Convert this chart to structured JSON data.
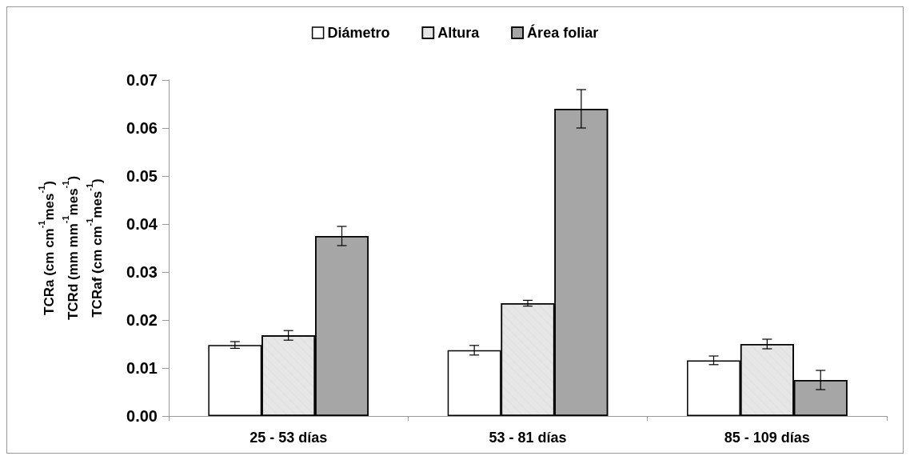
{
  "chart_data": {
    "type": "bar",
    "ylabel": "TCRa (cm cm$^{-1}$mes$^{-1}$)\nTCRd (mm mm$^{-1}$mes$^{-1}$)\nTCRaf (cm cm$^{-1}$mes$^{-1}$)",
    "categories": [
      "25 - 53 días",
      "53 - 81 días",
      "85 - 109 días"
    ],
    "series": [
      {
        "name": "Diámetro",
        "color": "#ffffff",
        "values": [
          0.0148,
          0.0137,
          0.0116
        ],
        "errors": [
          0.0007,
          0.001,
          0.0009
        ]
      },
      {
        "name": "Altura",
        "color": "#e6e6e6",
        "values": [
          0.0168,
          0.0235,
          0.015
        ],
        "errors": [
          0.001,
          0.0006,
          0.001
        ]
      },
      {
        "name": "Área foliar",
        "color": "#a6a6a6",
        "values": [
          0.0375,
          0.064,
          0.0075
        ],
        "errors": [
          0.002,
          0.004,
          0.002
        ]
      }
    ],
    "ylim": [
      0,
      0.07
    ],
    "yticks": [
      {
        "value": 0,
        "label": "0.00"
      },
      0.01,
      0.02,
      0.03,
      0.04,
      0.05,
      0.06,
      0.07
    ],
    "legend": "top",
    "grid": false
  }
}
